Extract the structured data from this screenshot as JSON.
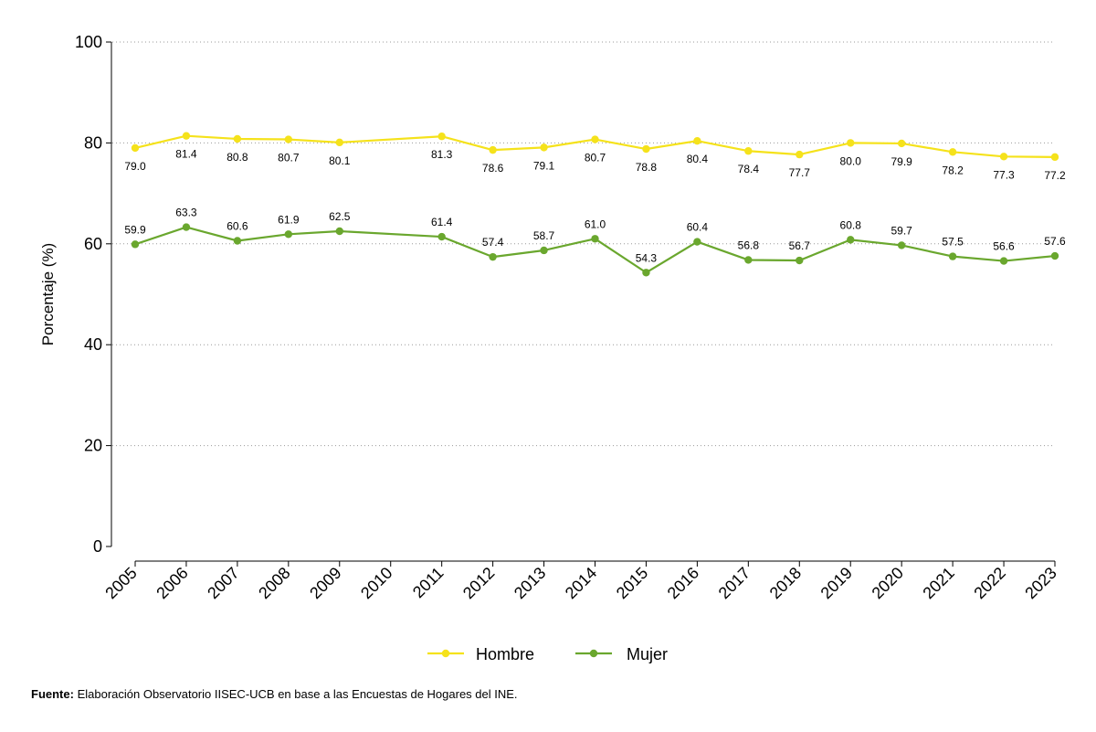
{
  "chart_data": {
    "type": "line",
    "title": "",
    "xlabel": "",
    "ylabel": "Porcentaje (%)",
    "ylim": [
      0,
      100
    ],
    "yticks": [
      0,
      20,
      40,
      60,
      80,
      100
    ],
    "grid": true,
    "legend_position": "bottom",
    "x": [
      "2005",
      "2006",
      "2007",
      "2008",
      "2009",
      "2010",
      "2011",
      "2012",
      "2013",
      "2014",
      "2015",
      "2016",
      "2017",
      "2018",
      "2019",
      "2020",
      "2021",
      "2022",
      "2023"
    ],
    "series": [
      {
        "name": "Hombre",
        "color": "#f5e21b",
        "label_position": "below",
        "values": [
          79.0,
          81.4,
          80.8,
          80.7,
          80.1,
          null,
          81.3,
          78.6,
          79.1,
          80.7,
          78.8,
          80.4,
          78.4,
          77.7,
          80.0,
          79.9,
          78.2,
          77.3,
          77.2
        ]
      },
      {
        "name": "Mujer",
        "color": "#6aa72e",
        "label_position": "above",
        "values": [
          59.9,
          63.3,
          60.6,
          61.9,
          62.5,
          null,
          61.4,
          57.4,
          58.7,
          61.0,
          54.3,
          60.4,
          56.8,
          56.7,
          60.8,
          59.7,
          57.5,
          56.6,
          57.6
        ]
      }
    ]
  },
  "source": {
    "label": "Fuente:",
    "text": " Elaboración Observatorio IISEC-UCB en base a las Encuestas de Hogares del INE."
  }
}
